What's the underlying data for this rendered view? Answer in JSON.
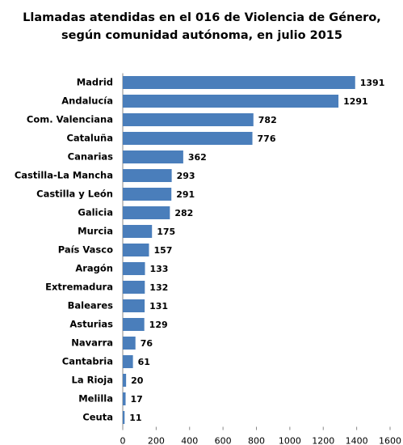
{
  "chart_data": {
    "type": "bar",
    "orientation": "horizontal",
    "title": [
      "Llamadas atendidas en el 016 de Violencia de Género,",
      "según comunidad autónoma, en julio 2015"
    ],
    "categories": [
      "Madrid",
      "Andalucía",
      "Com. Valenciana",
      "Cataluña",
      "Canarias",
      "Castilla-La Mancha",
      "Castilla y León",
      "Galicia",
      "Murcia",
      "País Vasco",
      "Aragón",
      "Extremadura",
      "Baleares",
      "Asturias",
      "Navarra",
      "Cantabria",
      "La Rioja",
      "Melilla",
      "Ceuta"
    ],
    "values": [
      1391,
      1291,
      782,
      776,
      362,
      293,
      291,
      282,
      175,
      157,
      133,
      132,
      131,
      129,
      76,
      61,
      20,
      17,
      11
    ],
    "color": "#4a7ebb",
    "xlim": [
      0,
      1600
    ],
    "xticks": [
      0,
      200,
      400,
      600,
      800,
      1000,
      1200,
      1400,
      1600
    ],
    "grid": false
  }
}
